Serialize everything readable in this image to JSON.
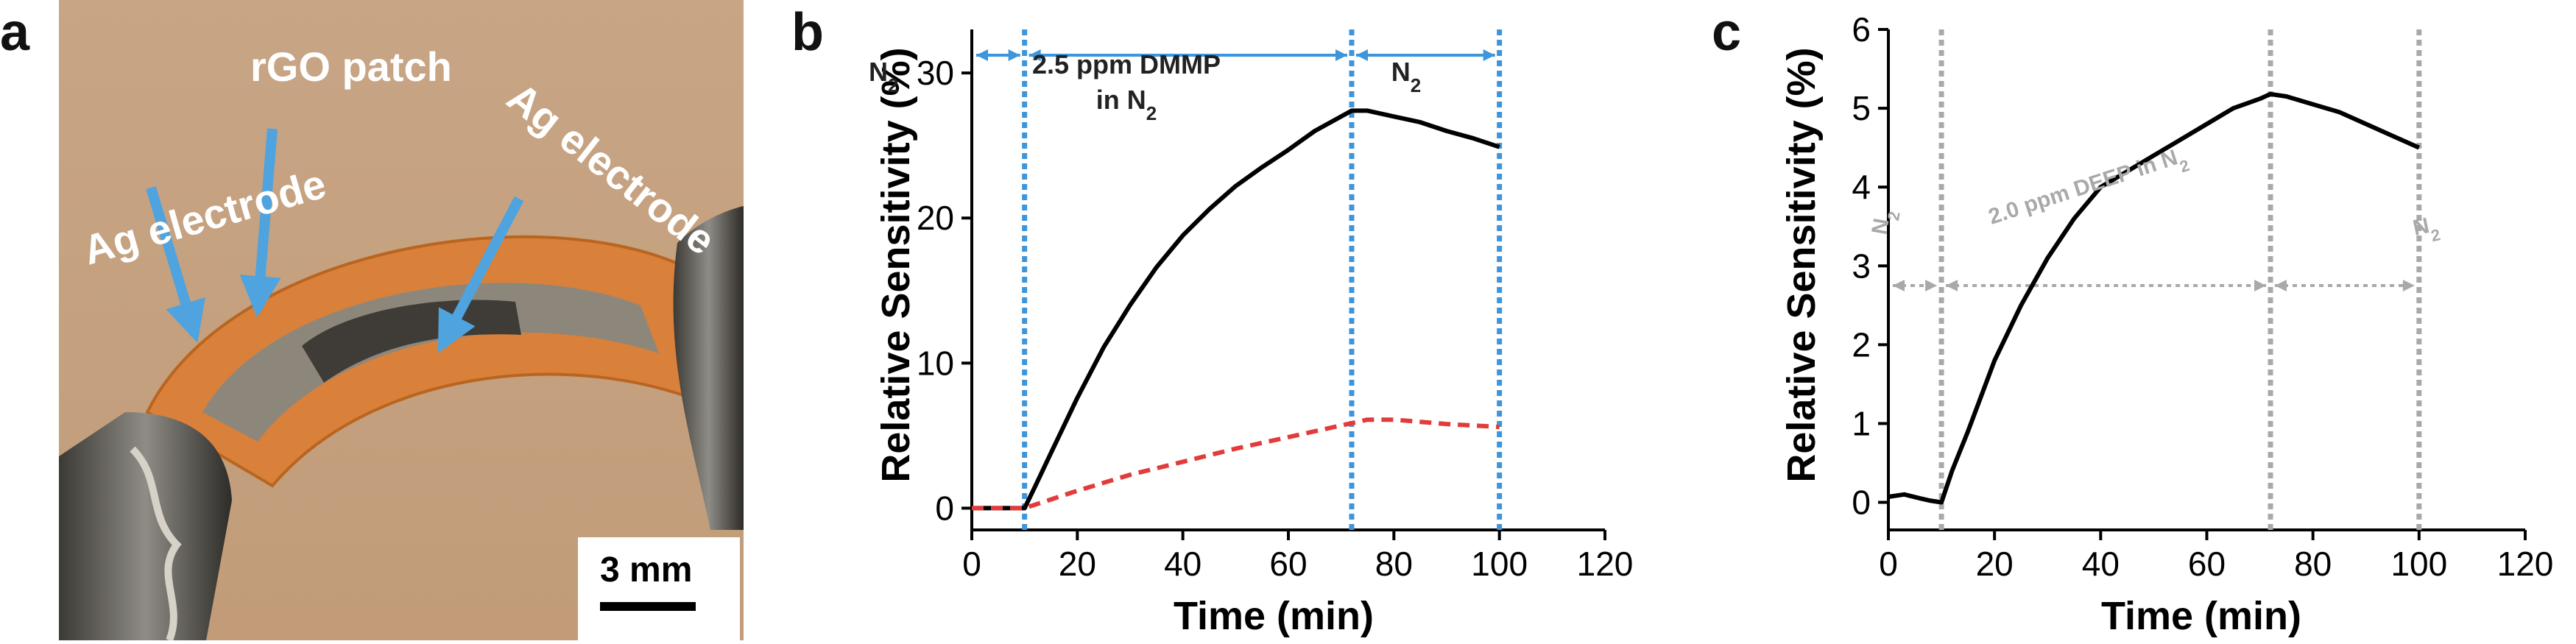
{
  "figure": {
    "panel_labels": {
      "a": "a",
      "b": "b",
      "c": "c"
    },
    "photo": {
      "labels": {
        "rgo_patch": "rGO patch",
        "ag_electrode_left": "Ag electrode",
        "ag_electrode_right": "Ag electrode"
      },
      "scale_bar": "3 mm",
      "colors": {
        "background": "#c9a98a",
        "substrate": "#d9803a",
        "arrow": "#4fa3df",
        "label": "#ffffff"
      }
    }
  },
  "chart_data": [
    {
      "type": "line",
      "xlabel": "Time (min)",
      "ylabel": "Relative Sensitivity (%)",
      "xlim": [
        0,
        120
      ],
      "ylim": [
        -1.5,
        33
      ],
      "xticks": [
        0,
        20,
        40,
        60,
        80,
        100,
        120
      ],
      "yticks": [
        0,
        10,
        20,
        30
      ],
      "annotations": {
        "n2_left": "N",
        "n2_left_sub": "2",
        "exposure_line1": "2.5 ppm DMMP",
        "exposure_line2": "in N",
        "exposure_line2_sub": "2",
        "n2_right": "N",
        "n2_right_sub": "2"
      },
      "markers_x": [
        10,
        72,
        100
      ],
      "series": [
        {
          "style": "solid",
          "color": "#000000",
          "x": [
            0,
            5,
            10,
            12,
            15,
            20,
            25,
            30,
            35,
            40,
            45,
            50,
            55,
            60,
            65,
            70,
            72,
            75,
            80,
            85,
            90,
            95,
            100
          ],
          "y": [
            0,
            0,
            0,
            1.5,
            3.8,
            7.6,
            11.1,
            14.0,
            16.6,
            18.8,
            20.6,
            22.2,
            23.5,
            24.7,
            26.0,
            27.0,
            27.4,
            27.4,
            27.0,
            26.6,
            26.0,
            25.5,
            24.9
          ]
        },
        {
          "style": "dashed",
          "color": "#e23b3b",
          "x": [
            0,
            10,
            15,
            20,
            30,
            40,
            50,
            60,
            70,
            75,
            80,
            90,
            100
          ],
          "y": [
            0,
            0,
            0.6,
            1.2,
            2.3,
            3.2,
            4.1,
            4.9,
            5.7,
            6.1,
            6.1,
            5.8,
            5.6
          ]
        }
      ],
      "colors": {
        "markers": "#3d95db"
      }
    },
    {
      "type": "line",
      "xlabel": "Time (min)",
      "ylabel": "Relative Sensitivity (%)",
      "xlim": [
        0,
        120
      ],
      "ylim": [
        -0.35,
        6
      ],
      "xticks": [
        0,
        20,
        40,
        60,
        80,
        100,
        120
      ],
      "yticks": [
        0,
        1,
        2,
        3,
        4,
        5,
        6
      ],
      "annotations": {
        "n2_left": "N",
        "n2_left_sub": "2",
        "exposure": "2.0 ppm DEEP in N",
        "exposure_sub": "2",
        "n2_right": "N",
        "n2_right_sub": "2"
      },
      "markers_x": [
        10,
        72,
        100
      ],
      "series": [
        {
          "style": "solid",
          "color": "#000000",
          "x": [
            0,
            3,
            6,
            8,
            10,
            12,
            15,
            20,
            25,
            30,
            35,
            40,
            45,
            50,
            55,
            60,
            65,
            70,
            72,
            75,
            80,
            85,
            90,
            95,
            100
          ],
          "y": [
            0.07,
            0.1,
            0.05,
            0.02,
            0.0,
            0.4,
            0.9,
            1.8,
            2.5,
            3.1,
            3.6,
            4.0,
            4.2,
            4.4,
            4.6,
            4.8,
            5.0,
            5.12,
            5.18,
            5.15,
            5.05,
            4.95,
            4.8,
            4.65,
            4.5
          ]
        }
      ],
      "colors": {
        "markers": "#a9a9a9"
      }
    }
  ]
}
